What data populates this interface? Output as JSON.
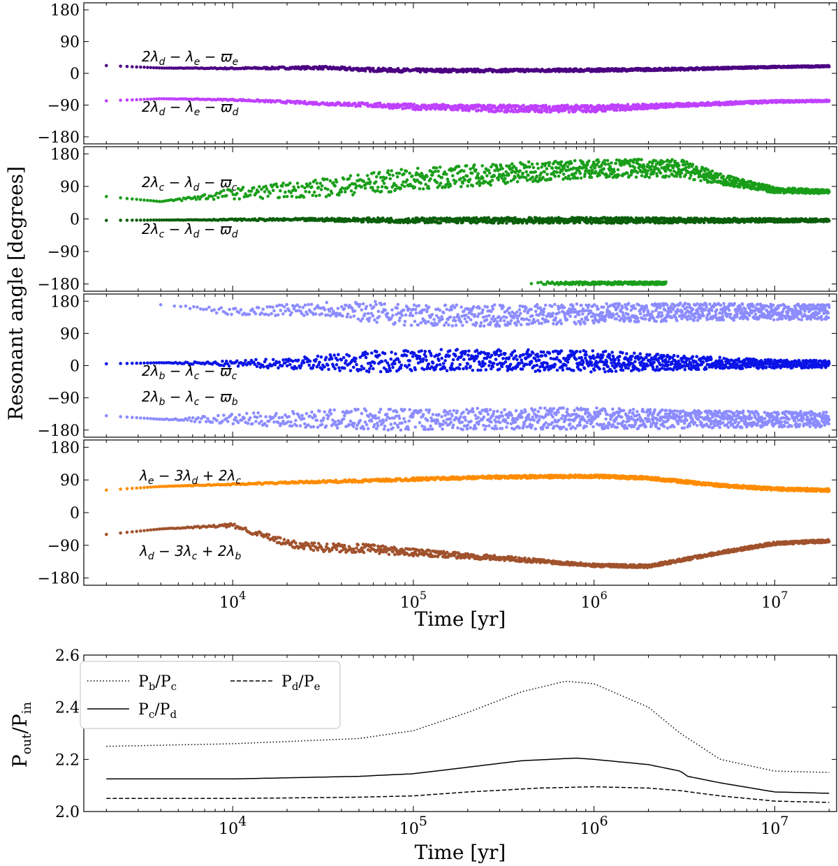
{
  "chart_data": [
    {
      "type": "scatter",
      "panel": "top-1",
      "ylabel": "Resonant angle [degrees]",
      "ylim": [
        -200,
        200
      ],
      "yticks": [
        -180,
        -90,
        0,
        90,
        180
      ],
      "ytick_labels": [
        "−180",
        "−90",
        "0",
        "90",
        "180"
      ],
      "xlim": [
        1500,
        22000000
      ],
      "xscale": "log",
      "series": [
        {
          "name": "2λ_d − λ_e − ϖ_e",
          "label_main": "2λ",
          "label_parts": [
            [
              "d",
              "−λ"
            ],
            [
              "e",
              "−ϖ"
            ],
            [
              "e",
              ""
            ]
          ],
          "color": "#4b0082",
          "x": [
            2000,
            4000,
            10000,
            30000,
            60000,
            100000,
            300000,
            1000000,
            3000000,
            10000000,
            20000000
          ],
          "y": [
            22,
            15,
            14,
            16,
            10,
            8,
            8,
            9,
            12,
            18,
            20
          ],
          "spread": [
            0,
            0,
            2,
            4,
            5,
            5,
            4,
            4,
            3,
            2,
            2
          ]
        },
        {
          "name": "2λ_d − λ_e − ϖ_d",
          "color": "#bf40ff",
          "x": [
            2000,
            4000,
            10000,
            30000,
            60000,
            100000,
            300000,
            1000000,
            3000000,
            10000000,
            20000000
          ],
          "y": [
            -78,
            -72,
            -75,
            -85,
            -90,
            -95,
            -100,
            -100,
            -90,
            -80,
            -78
          ],
          "spread": [
            0,
            0,
            2,
            4,
            6,
            8,
            10,
            10,
            5,
            3,
            2
          ]
        }
      ]
    },
    {
      "type": "scatter",
      "panel": "top-2",
      "ylim": [
        -200,
        200
      ],
      "yticks": [
        -180,
        -90,
        0,
        90,
        180
      ],
      "ytick_labels": [
        "−180",
        "−90",
        "0",
        "90",
        "180"
      ],
      "xlim": [
        1500,
        22000000
      ],
      "xscale": "log",
      "series": [
        {
          "name": "2λ_c − λ_d − ϖ_c",
          "color": "#1a9e1a",
          "x": [
            2000,
            4000,
            10000,
            30000,
            60000,
            100000,
            300000,
            1000000,
            3000000,
            5000000,
            10000000,
            20000000
          ],
          "y": [
            62,
            48,
            70,
            85,
            100,
            110,
            125,
            140,
            140,
            110,
            80,
            75
          ],
          "spread": [
            0,
            0,
            15,
            25,
            30,
            30,
            30,
            25,
            25,
            15,
            8,
            5
          ]
        },
        {
          "name": "2λ_c − λ_d − ϖ_d",
          "color": "#0b5f0b",
          "x": [
            2000,
            4000,
            10000,
            30000,
            60000,
            100000,
            300000,
            1000000,
            3000000,
            10000000,
            20000000
          ],
          "y": [
            -4,
            -3,
            -2,
            -2,
            -3,
            -4,
            -4,
            -4,
            -4,
            -4,
            -4
          ],
          "spread": [
            0,
            0,
            2,
            4,
            6,
            7,
            8,
            8,
            7,
            5,
            4
          ]
        },
        {
          "name": "2λ_c − λ_d − ϖ_c (wrapped)",
          "color": "#1a9e1a",
          "x": [
            450000,
            2500000
          ],
          "y": [
            -178,
            -178
          ],
          "spread": [
            4,
            4
          ]
        }
      ]
    },
    {
      "type": "scatter",
      "panel": "top-3",
      "ylim": [
        -200,
        200
      ],
      "yticks": [
        -180,
        -90,
        0,
        90,
        180
      ],
      "ytick_labels": [
        "−180",
        "−90",
        "0",
        "90",
        "180"
      ],
      "xlim": [
        1500,
        22000000
      ],
      "xscale": "log",
      "series": [
        {
          "name": "2λ_b − λ_c − ϖ_c",
          "color": "#0a14e6",
          "x": [
            2000,
            4000,
            10000,
            30000,
            60000,
            100000,
            300000,
            1000000,
            3000000,
            10000000,
            20000000
          ],
          "y": [
            5,
            8,
            5,
            8,
            12,
            15,
            15,
            12,
            8,
            5,
            4
          ],
          "spread": [
            0,
            0,
            8,
            20,
            30,
            30,
            30,
            30,
            20,
            12,
            10
          ]
        },
        {
          "name": "2λ_b − λ_c − ϖ_b",
          "color": "#8c8cff",
          "x": [
            2000,
            4000,
            10000,
            30000,
            60000,
            100000,
            300000,
            1000000,
            3000000,
            10000000,
            20000000
          ],
          "y": [
            -140,
            -150,
            -150,
            -150,
            -150,
            -150,
            -148,
            -148,
            -150,
            -150,
            -150
          ],
          "spread": [
            0,
            0,
            15,
            25,
            30,
            30,
            30,
            30,
            25,
            22,
            22
          ]
        },
        {
          "name": "2λ_b − λ_c − ϖ_b (wrapped)",
          "color": "#8c8cff",
          "x": [
            4000,
            10000,
            30000,
            60000,
            100000,
            300000,
            1000000,
            3000000,
            10000000,
            20000000
          ],
          "y": [
            170,
            150,
            160,
            150,
            140,
            140,
            145,
            150,
            150,
            150
          ],
          "spread": [
            0,
            10,
            20,
            30,
            30,
            30,
            28,
            25,
            22,
            22
          ]
        }
      ]
    },
    {
      "type": "scatter",
      "panel": "top-4",
      "ylim": [
        -200,
        200
      ],
      "yticks": [
        -180,
        -90,
        0,
        90,
        180
      ],
      "ytick_labels": [
        "−180",
        "−90",
        "0",
        "90",
        "180"
      ],
      "xlim": [
        1500,
        22000000
      ],
      "xscale": "log",
      "xticks": [
        10000,
        100000,
        1000000,
        10000000
      ],
      "xtick_base": [
        "10",
        "10",
        "10",
        "10"
      ],
      "xtick_exp": [
        "4",
        "5",
        "6",
        "7"
      ],
      "xlabel": "Time [yr]",
      "series": [
        {
          "name": "λ_e − 3λ_d + 2λ_c",
          "color": "#ff8c00",
          "x": [
            2000,
            4000,
            10000,
            30000,
            60000,
            100000,
            300000,
            1000000,
            2000000,
            5000000,
            10000000,
            20000000
          ],
          "y": [
            62,
            72,
            78,
            85,
            88,
            92,
            98,
            100,
            95,
            75,
            65,
            62
          ],
          "spread": [
            0,
            0,
            2,
            3,
            4,
            4,
            4,
            4,
            4,
            4,
            4,
            4
          ]
        },
        {
          "name": "λ_d − 3λ_c + 2λ_b",
          "color": "#a0522d",
          "x": [
            2000,
            4000,
            10000,
            20000,
            30000,
            60000,
            100000,
            300000,
            1000000,
            2000000,
            5000000,
            10000000,
            20000000
          ],
          "y": [
            -60,
            -45,
            -35,
            -85,
            -95,
            -100,
            -110,
            -125,
            -145,
            -148,
            -110,
            -85,
            -78
          ],
          "spread": [
            0,
            0,
            5,
            10,
            12,
            12,
            10,
            6,
            4,
            4,
            4,
            4,
            4
          ]
        }
      ]
    },
    {
      "type": "line",
      "panel": "bottom",
      "xlabel": "Time [yr]",
      "ylim": [
        2.0,
        2.6
      ],
      "yticks": [
        2.0,
        2.2,
        2.4,
        2.6
      ],
      "ytick_labels": [
        "2.0",
        "2.2",
        "2.4",
        "2.6"
      ],
      "xlim": [
        1500,
        22000000
      ],
      "xscale": "log",
      "xticks": [
        10000,
        100000,
        1000000,
        10000000
      ],
      "xtick_base": [
        "10",
        "10",
        "10",
        "10"
      ],
      "xtick_exp": [
        "4",
        "5",
        "6",
        "7"
      ],
      "legend_placement": "top-left",
      "series": [
        {
          "name": "P_b/P_c",
          "style": "dotted",
          "x": [
            2000,
            10000,
            50000,
            100000,
            200000,
            400000,
            700000,
            1000000,
            2000000,
            3000000,
            5000000,
            10000000,
            20000000
          ],
          "y": [
            2.25,
            2.26,
            2.28,
            2.31,
            2.38,
            2.46,
            2.5,
            2.49,
            2.4,
            2.3,
            2.2,
            2.155,
            2.15
          ]
        },
        {
          "name": "P_c/P_d",
          "style": "solid",
          "x": [
            2000,
            10000,
            50000,
            100000,
            200000,
            400000,
            800000,
            1000000,
            2000000,
            3000000,
            3300000,
            5000000,
            10000000,
            20000000
          ],
          "y": [
            2.125,
            2.125,
            2.135,
            2.145,
            2.17,
            2.195,
            2.205,
            2.2,
            2.18,
            2.155,
            2.135,
            2.11,
            2.075,
            2.07
          ]
        },
        {
          "name": "P_d/P_e",
          "style": "dashed",
          "x": [
            2000,
            10000,
            50000,
            100000,
            200000,
            500000,
            1000000,
            2000000,
            3000000,
            5000000,
            10000000,
            20000000
          ],
          "y": [
            2.05,
            2.05,
            2.055,
            2.06,
            2.075,
            2.09,
            2.095,
            2.09,
            2.08,
            2.06,
            2.04,
            2.035
          ]
        }
      ],
      "ylabel_base": "P",
      "ylabel_num_sub": "out",
      "ylabel_den_sub": "in"
    }
  ],
  "labels": {
    "l1": {
      "a": "2λ",
      "b": "d",
      "c": " − λ",
      "d": "e",
      "e": " − ϖ",
      "f": "e"
    },
    "l2": {
      "a": "2λ",
      "b": "d",
      "c": " − λ",
      "d": "e",
      "e": " − ϖ",
      "f": "d"
    },
    "l3": {
      "a": "2λ",
      "b": "c",
      "c": " − λ",
      "d": "d",
      "e": " − ϖ",
      "f": "c"
    },
    "l4": {
      "a": "2λ",
      "b": "c",
      "c": " − λ",
      "d": "d",
      "e": " − ϖ",
      "f": "d"
    },
    "l5": {
      "a": "2λ",
      "b": "b",
      "c": " − λ",
      "d": "c",
      "e": " − ϖ",
      "f": "c"
    },
    "l6": {
      "a": "2λ",
      "b": "b",
      "c": " − λ",
      "d": "c",
      "e": " − ϖ",
      "f": "b"
    },
    "l7": {
      "a": "λ",
      "b": "e",
      "c": " − 3λ",
      "d": "d",
      "e": " + 2λ",
      "f": "c"
    },
    "l8": {
      "a": "λ",
      "b": "d",
      "c": " − 3λ",
      "d": "c",
      "e": " + 2λ",
      "f": "b"
    }
  },
  "legend": {
    "pbpc": {
      "base1": "P",
      "sub1": "b",
      "slash": "/",
      "base2": "P",
      "sub2": "c"
    },
    "pcpd": {
      "base1": "P",
      "sub1": "c",
      "slash": "/",
      "base2": "P",
      "sub2": "d"
    },
    "pdpe": {
      "base1": "P",
      "sub1": "d",
      "slash": "/",
      "base2": "P",
      "sub2": "e"
    }
  },
  "top_ylabel": "Resonant angle [degrees]",
  "top_xlabel": "Time [yr]",
  "bottom_xlabel": "Time [yr]"
}
